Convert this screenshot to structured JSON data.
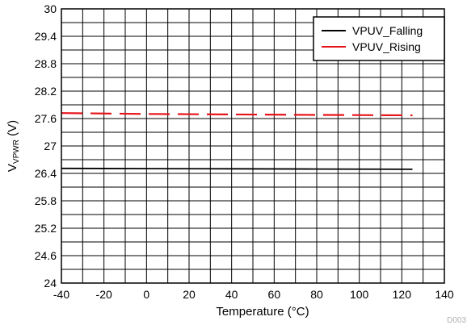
{
  "chart_data": {
    "type": "line",
    "xlabel": "Temperature (°C)",
    "ylabel": {
      "main": "V",
      "sub": "VPWR",
      "unit": " (V)"
    },
    "xlim": [
      -40,
      140
    ],
    "ylim": [
      24,
      30
    ],
    "x_ticks": [
      -40,
      -20,
      0,
      20,
      40,
      60,
      80,
      100,
      120,
      140
    ],
    "y_ticks": [
      24,
      24.6,
      25.2,
      25.8,
      26.4,
      27,
      27.6,
      28.2,
      28.8,
      29.4,
      30
    ],
    "grid": true,
    "grid_step_x": 10,
    "grid_step_y": 0.3,
    "legend_position": "top-right",
    "series": [
      {
        "name": "VPUV_Falling",
        "color": "#000000",
        "dash": "solid",
        "x": [
          -40,
          0,
          40,
          80,
          125
        ],
        "y": [
          26.51,
          26.505,
          26.5,
          26.495,
          26.49
        ]
      },
      {
        "name": "VPUV_Rising",
        "color": "#e8141b",
        "dash": "dashed",
        "x": [
          -40,
          0,
          40,
          80,
          125
        ],
        "y": [
          27.72,
          27.7,
          27.69,
          27.68,
          27.67
        ]
      }
    ],
    "figure_id": "D003"
  }
}
